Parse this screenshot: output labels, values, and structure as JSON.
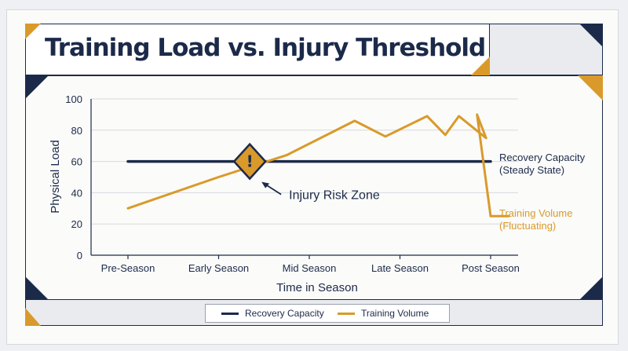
{
  "title": "Training Load vs. Injury Threshold",
  "colors": {
    "navy": "#1c2a4a",
    "gold": "#d99a2b",
    "grid": "#d7dade"
  },
  "chart_data": {
    "type": "line",
    "title": "Training Load vs. Injury Threshold",
    "xlabel": "Time in Season",
    "ylabel": "Physical Load",
    "ylim": [
      0,
      100
    ],
    "yticks": [
      "0",
      "20",
      "40",
      "60",
      "80",
      "100"
    ],
    "x_ticks": [
      "Pre-Season",
      "Early Season",
      "Mid Season",
      "Late Season",
      "Post Season"
    ],
    "grid": "horizontal",
    "legend_position": "bottom",
    "series": [
      {
        "name": "Recovery Capacity",
        "color": "#1c2a4a",
        "x": [
          0,
          4
        ],
        "values": [
          60,
          60
        ]
      },
      {
        "name": "Training Volume",
        "color": "#d99a2b",
        "x": [
          0,
          1,
          1.75,
          2.5,
          2.84,
          3.3,
          3.5,
          3.65,
          3.95,
          3.85,
          4,
          4.2
        ],
        "values": [
          30,
          50,
          64,
          86,
          76,
          89,
          77,
          89,
          75,
          90,
          25,
          25
        ]
      }
    ],
    "annotations": [
      {
        "text": "Injury Risk Zone",
        "x": 1.3,
        "y": 60,
        "marker": "warning-diamond",
        "marker_text": "!"
      }
    ],
    "line_labels": [
      {
        "series": "Recovery Capacity",
        "line1": "Recovery Capacity",
        "line2": "(Steady State)"
      },
      {
        "series": "Training Volume",
        "line1": "Training Volume",
        "line2": "(Fluctuating)"
      }
    ]
  },
  "legend": [
    {
      "label": "Recovery Capacity",
      "color": "#1c2a4a"
    },
    {
      "label": "Training Volume",
      "color": "#d99a2b"
    }
  ]
}
